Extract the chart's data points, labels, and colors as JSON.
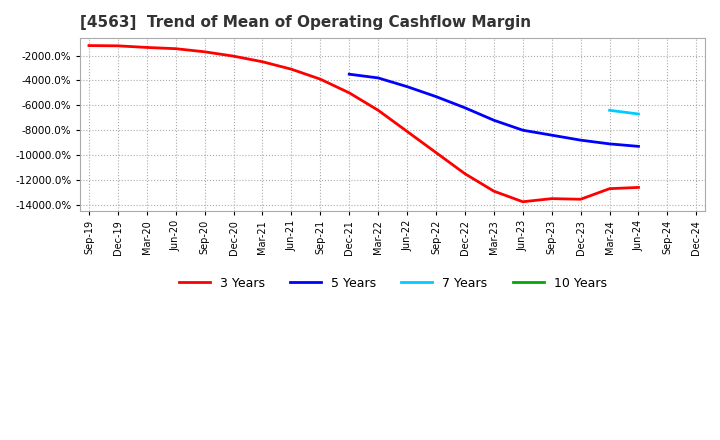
{
  "title": "[4563]  Trend of Mean of Operating Cashflow Margin",
  "title_fontsize": 11,
  "background_color": "#ffffff",
  "plot_bg_color": "#ffffff",
  "grid_color": "#aaaaaa",
  "x_labels": [
    "Sep-19",
    "Dec-19",
    "Mar-20",
    "Jun-20",
    "Sep-20",
    "Dec-20",
    "Mar-21",
    "Jun-21",
    "Sep-21",
    "Dec-21",
    "Mar-22",
    "Jun-22",
    "Sep-22",
    "Dec-22",
    "Mar-23",
    "Jun-23",
    "Sep-23",
    "Dec-23",
    "Mar-24",
    "Jun-24",
    "Sep-24",
    "Dec-24"
  ],
  "series_3yr": {
    "label": "3 Years",
    "color": "#ff0000",
    "values": [
      -1200,
      -1220,
      -1350,
      -1450,
      -1700,
      -2050,
      -2500,
      -3100,
      -3900,
      -5000,
      -6400,
      -8100,
      -9800,
      -11500,
      -12900,
      -13750,
      -13500,
      -13550,
      -12700,
      -12600,
      null,
      null
    ]
  },
  "series_5yr": {
    "label": "5 Years",
    "color": "#0000ff",
    "values": [
      null,
      null,
      null,
      null,
      null,
      null,
      null,
      null,
      null,
      -3500,
      -3800,
      -4500,
      -5300,
      -6200,
      -7200,
      -8000,
      -8400,
      -8800,
      -9100,
      -9300,
      null,
      null
    ]
  },
  "series_7yr": {
    "label": "7 Years",
    "color": "#00ccff",
    "values": [
      null,
      null,
      null,
      null,
      null,
      null,
      null,
      null,
      null,
      null,
      null,
      null,
      null,
      null,
      null,
      null,
      null,
      null,
      -6400,
      -6700,
      null,
      null
    ]
  },
  "series_10yr": {
    "label": "10 Years",
    "color": "#00aa00",
    "values": [
      null,
      null,
      null,
      null,
      null,
      null,
      null,
      null,
      null,
      null,
      null,
      null,
      null,
      null,
      null,
      null,
      null,
      null,
      null,
      null,
      null,
      null
    ]
  },
  "ylim_min": -14500,
  "ylim_max": -600,
  "yticks": [
    -2000,
    -4000,
    -6000,
    -8000,
    -10000,
    -12000,
    -14000
  ],
  "legend_labels": [
    "3 Years",
    "5 Years",
    "7 Years",
    "10 Years"
  ],
  "legend_colors": [
    "#ff0000",
    "#0000ff",
    "#00ccff",
    "#00aa00"
  ]
}
